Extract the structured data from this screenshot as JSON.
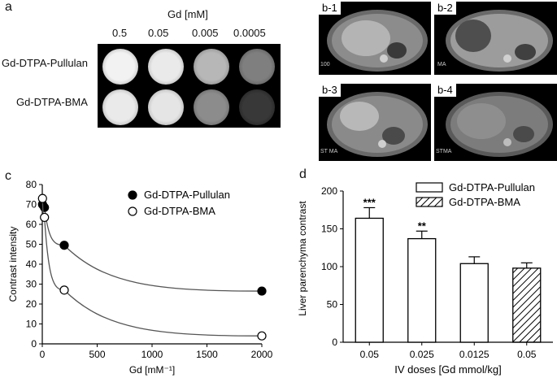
{
  "panels": {
    "a": {
      "label": "a",
      "header": "Gd [mM]",
      "concentrations": [
        "0.5",
        "0.05",
        "0.005",
        "0.0005"
      ],
      "rows": [
        "Gd-DTPA-Pullulan",
        "Gd-DTPA-BMA"
      ],
      "well_intensity": [
        [
          0.85,
          0.82,
          0.62,
          0.4
        ],
        [
          0.82,
          0.8,
          0.45,
          0.12
        ]
      ]
    },
    "b": {
      "tiles": [
        "b-1",
        "b-2",
        "b-3",
        "b-4"
      ],
      "annotations": [
        "100",
        "MA",
        "ST MA",
        "STMA"
      ]
    },
    "c": {
      "label": "c"
    },
    "d": {
      "label": "d"
    }
  },
  "chart_data": [
    {
      "panel": "c",
      "type": "scatter",
      "xlabel": "Gd [mM⁻¹]",
      "ylabel": "Contrast intensity",
      "xlim": [
        0,
        2000
      ],
      "ylim": [
        0,
        80
      ],
      "xticks": [
        0,
        500,
        1000,
        1500,
        2000
      ],
      "yticks": [
        0,
        10,
        20,
        30,
        40,
        50,
        60,
        70,
        80
      ],
      "legend_position": "top-right",
      "series": [
        {
          "name": "Gd-DTPA-Pullulan",
          "marker": "filled",
          "x": [
            2,
            20,
            200,
            2000
          ],
          "y": [
            70,
            68.5,
            49.5,
            26.5
          ]
        },
        {
          "name": "Gd-DTPA-BMA",
          "marker": "open",
          "x": [
            2,
            20,
            200,
            2000
          ],
          "y": [
            73,
            63.5,
            27,
            4
          ]
        }
      ]
    },
    {
      "panel": "d",
      "type": "bar",
      "xlabel": "IV doses [Gd mmol/kg]",
      "ylabel": "Liver parenchyma contrast",
      "ylim": [
        0,
        200
      ],
      "yticks": [
        0,
        50,
        100,
        150,
        200
      ],
      "categories": [
        "0.05",
        "0.025",
        "0.0125",
        "0.05"
      ],
      "values": [
        164,
        137,
        104,
        98
      ],
      "errors": [
        14,
        10,
        9,
        7
      ],
      "significance": [
        "***",
        "**",
        "",
        ""
      ],
      "bar_series": [
        "Gd-DTPA-Pullulan",
        "Gd-DTPA-Pullulan",
        "Gd-DTPA-Pullulan",
        "Gd-DTPA-BMA"
      ],
      "legend": [
        {
          "name": "Gd-DTPA-Pullulan",
          "fill": "open"
        },
        {
          "name": "Gd-DTPA-BMA",
          "fill": "hatched"
        }
      ],
      "legend_position": "top-right"
    }
  ]
}
